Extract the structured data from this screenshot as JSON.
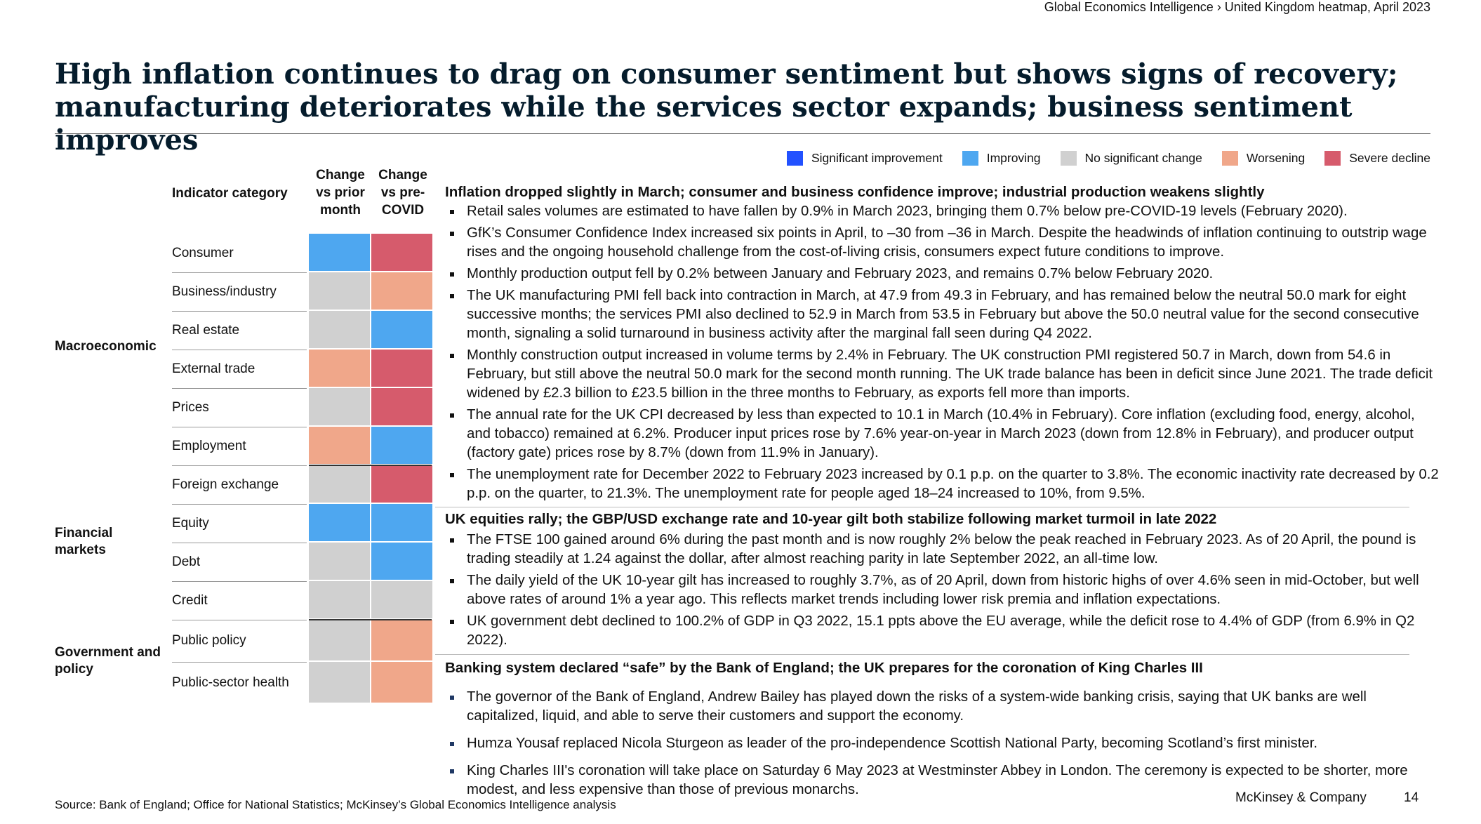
{
  "breadcrumb": "Global Economics Intelligence › United Kingdom heatmap, April 2023",
  "title": "High inflation continues to drag on consumer sentiment but shows signs of recovery; manufacturing deteriorates while the services sector expands; business sentiment improves",
  "legend": [
    {
      "label": "Significant improvement",
      "color": "#2251ff"
    },
    {
      "label": "Improving",
      "color": "#4ea7f0"
    },
    {
      "label": "No significant change",
      "color": "#d0d0d0"
    },
    {
      "label": "Worsening",
      "color": "#f0a78a"
    },
    {
      "label": "Severe decline",
      "color": "#d65b6c"
    }
  ],
  "table": {
    "header_category": "Indicator category",
    "header_col1": "Change vs prior month",
    "header_col2": "Change vs pre-COVID",
    "groups": [
      "Macroeconomic",
      "Financial markets",
      "Government and policy"
    ],
    "rows": [
      {
        "label": "Consumer",
        "m": "improving",
        "c": "severe"
      },
      {
        "label": "Business/industry",
        "m": "none",
        "c": "worsening"
      },
      {
        "label": "Real estate",
        "m": "none",
        "c": "improving"
      },
      {
        "label": "External trade",
        "m": "worsening",
        "c": "severe"
      },
      {
        "label": "Prices",
        "m": "none",
        "c": "severe"
      },
      {
        "label": "Employment",
        "m": "worsening",
        "c": "improving"
      },
      {
        "label": "Foreign exchange",
        "m": "none",
        "c": "severe"
      },
      {
        "label": "Equity",
        "m": "improving",
        "c": "improving"
      },
      {
        "label": "Debt",
        "m": "none",
        "c": "improving"
      },
      {
        "label": "Credit",
        "m": "none",
        "c": "none"
      },
      {
        "label": "Public policy",
        "m": "none",
        "c": "worsening"
      },
      {
        "label": "Public-sector health",
        "m": "none",
        "c": "worsening"
      }
    ]
  },
  "sections": [
    {
      "heading": "Inflation dropped slightly in March; consumer and business confidence improve; industrial production weakens slightly",
      "bullets": [
        "Retail sales volumes are estimated to have fallen by 0.9% in March 2023, bringing them 0.7% below pre-COVID-19 levels (February 2020).",
        "GfK’s Consumer Confidence Index increased six points in April, to –30 from –36 in March. Despite the headwinds of inflation continuing to outstrip wage rises and the ongoing household challenge from the cost-of-living crisis, consumers expect future conditions to improve.",
        "Monthly production output fell by 0.2% between January and February 2023, and remains 0.7% below February 2020.",
        "The UK manufacturing PMI fell back into contraction in March, at 47.9 from 49.3 in February, and has remained below the neutral 50.0 mark for eight successive months; the services PMI also declined to 52.9 in March from 53.5 in February but above the 50.0 neutral value for the second consecutive month, signaling a solid turnaround in business activity after the marginal fall seen during Q4 2022.",
        "Monthly construction output increased in volume terms by 2.4% in February. The UK construction PMI registered 50.7 in March, down from 54.6 in February, but still above the neutral 50.0 mark for the second month running. The UK trade balance has been in deficit since June 2021. The trade deficit widened by £2.3 billion to £23.5 billion in the three months to February, as exports fell more than imports.",
        "The annual rate for the UK CPI decreased by less than expected to 10.1 in March (10.4% in February). Core inflation (excluding food, energy, alcohol, and tobacco) remained at 6.2%. Producer input prices rose by 7.6% year-on-year in March 2023 (down from 12.8% in February), and producer output (factory gate) prices rose by 8.7% (down from 11.9% in January).",
        "The unemployment rate for December 2022 to February 2023 increased by 0.1 p.p. on the quarter to 3.8%. The economic inactivity rate decreased by 0.2 p.p. on the quarter, to 21.3%. The unemployment rate for people aged 18–24 increased to 10%, from 9.5%."
      ]
    },
    {
      "heading": "UK equities rally; the GBP/USD exchange rate and 10-year gilt both stabilize following market turmoil in late 2022",
      "bullets": [
        "The FTSE 100 gained around 6% during the past month and is now roughly 2% below the peak reached in February 2023. As of 20 April, the pound is trading steadily at 1.24 against the dollar, after almost reaching parity in late September 2022, an all-time low.",
        "The daily yield of the UK 10-year gilt has increased to roughly 3.7%, as of 20 April, down from historic highs of over 4.6% seen in mid-October, but well above rates of around 1% a year ago. This reflects market trends including lower risk premia and inflation expectations.",
        "UK government debt declined to 100.2% of GDP in Q3 2022, 15.1 ppts above the EU average, while the deficit rose to 4.4% of GDP (from 6.9% in Q2 2022)."
      ]
    },
    {
      "heading": "Banking system declared “safe” by the Bank of England; the UK prepares for the coronation of King Charles III",
      "bullets": [
        "The governor of the Bank of England, Andrew Bailey has played down the risks of a system-wide banking crisis, saying that UK banks are well capitalized, liquid, and able to serve their customers and support the economy.",
        "Humza Yousaf replaced Nicola Sturgeon as leader of the pro-independence Scottish National Party, becoming Scotland’s first minister.",
        "King Charles III's coronation will take place on Saturday 6 May 2023 at Westminster Abbey in London. The ceremony is expected to be shorter, more modest, and less expensive than those of previous monarchs."
      ]
    }
  ],
  "source": "Source: Bank of England; Office for National Statistics; McKinsey’s Global Economics Intelligence analysis",
  "brand": "McKinsey & Company",
  "page_number": "14"
}
